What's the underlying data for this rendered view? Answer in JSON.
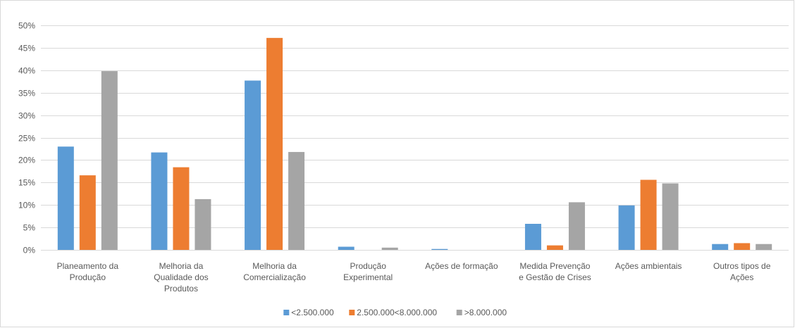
{
  "chart_data": {
    "type": "bar",
    "title": "",
    "xlabel": "",
    "ylabel": "",
    "ylim": [
      0,
      0.5
    ],
    "y_ticks": [
      0,
      0.05,
      0.1,
      0.15,
      0.2,
      0.25,
      0.3,
      0.35,
      0.4,
      0.45,
      0.5
    ],
    "y_tick_labels": [
      "0%",
      "5%",
      "10%",
      "15%",
      "20%",
      "25%",
      "30%",
      "35%",
      "40%",
      "45%",
      "50%"
    ],
    "grid": true,
    "legend_position": "bottom",
    "categories": [
      [
        "Planeamento da",
        "Produção"
      ],
      [
        "Melhoria da",
        "Qualidade dos",
        "Produtos"
      ],
      [
        "Melhoria da",
        "Comercialização"
      ],
      [
        "Produção",
        "Experimental"
      ],
      [
        "Ações de formação"
      ],
      [
        "Medida Prevenção",
        "e Gestão de Crises"
      ],
      [
        "Ações ambientais"
      ],
      [
        "Outros tipos de",
        "Ações"
      ]
    ],
    "series": [
      {
        "name": "<2.500.000",
        "color": "#5b9bd5",
        "values": [
          0.23,
          0.217,
          0.377,
          0.007,
          0.002,
          0.058,
          0.099,
          0.013
        ]
      },
      {
        "name": "2.500.000<8.000.000",
        "color": "#ed7d31",
        "values": [
          0.166,
          0.184,
          0.472,
          0.0,
          0.0,
          0.01,
          0.156,
          0.015
        ]
      },
      {
        "name": ">8.000.000",
        "color": "#a5a5a5",
        "values": [
          0.398,
          0.113,
          0.218,
          0.005,
          0.0,
          0.106,
          0.148,
          0.013
        ]
      }
    ]
  }
}
